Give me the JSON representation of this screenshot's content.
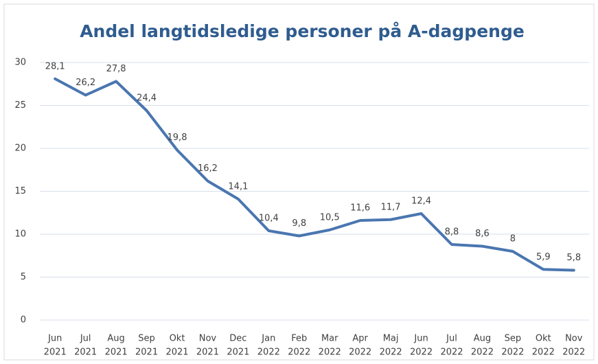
{
  "chart_data": {
    "type": "line",
    "title": "Andel langtidsledige personer på A-dagpenge",
    "categories": [
      [
        "Jun",
        "2021"
      ],
      [
        "Jul",
        "2021"
      ],
      [
        "Aug",
        "2021"
      ],
      [
        "Sep",
        "2021"
      ],
      [
        "Okt",
        "2021"
      ],
      [
        "Nov",
        "2021"
      ],
      [
        "Dec",
        "2021"
      ],
      [
        "Jan",
        "2022"
      ],
      [
        "Feb",
        "2022"
      ],
      [
        "Mar",
        "2022"
      ],
      [
        "Apr",
        "2022"
      ],
      [
        "Maj",
        "2022"
      ],
      [
        "Jun",
        "2022"
      ],
      [
        "Jul",
        "2022"
      ],
      [
        "Aug",
        "2022"
      ],
      [
        "Sep",
        "2022"
      ],
      [
        "Okt",
        "2022"
      ],
      [
        "Nov",
        "2022"
      ]
    ],
    "values": [
      28.1,
      26.2,
      27.8,
      24.4,
      19.8,
      16.2,
      14.1,
      10.4,
      9.8,
      10.5,
      11.6,
      11.7,
      12.4,
      8.8,
      8.6,
      8,
      5.9,
      5.8
    ],
    "value_labels": [
      "28,1",
      "26,2",
      "27,8",
      "24,4",
      "19,8",
      "16,2",
      "14,1",
      "10,4",
      "9,8",
      "10,5",
      "11,6",
      "11,7",
      "12,4",
      "8,8",
      "8,6",
      "8",
      "5,9",
      "5,8"
    ],
    "color": "#4a76b0",
    "ylim": [
      0,
      30
    ],
    "yticks": [
      0,
      5,
      10,
      15,
      20,
      25,
      30
    ],
    "grid": true
  }
}
